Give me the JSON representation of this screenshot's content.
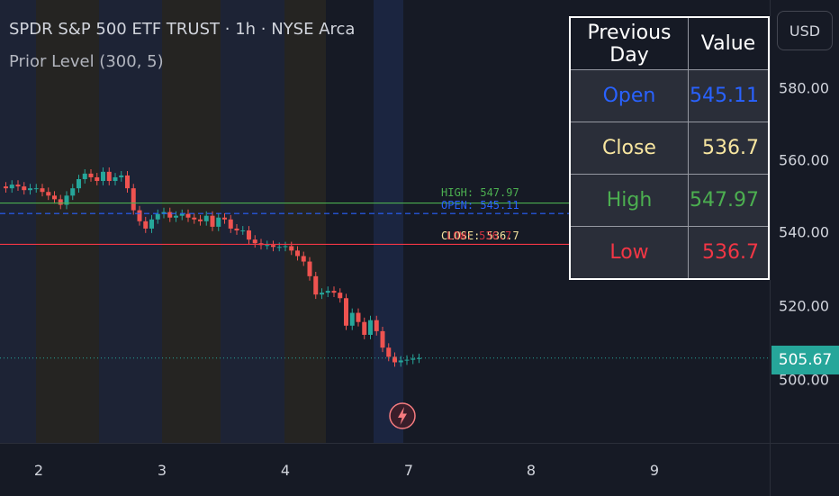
{
  "header": {
    "title": "SPDR S&P 500 ETF TRUST · 1h · NYSE Arca",
    "indicator": "Prior Level (300, 5)"
  },
  "price_axis": {
    "currency": "USD",
    "ticks": [
      "580.00",
      "560.00",
      "540.00",
      "520.00",
      "500.00"
    ],
    "last_price": "505.67"
  },
  "time_axis": {
    "ticks": [
      "2",
      "3",
      "4",
      "7",
      "8",
      "9"
    ]
  },
  "levels": {
    "high_label": "HIGH: 547.97",
    "open_label": "OPEN: 545.11",
    "close_label": "CLOSE: 536.7",
    "low_label": "LOW: 536.7"
  },
  "table": {
    "headers": [
      "Previous Day",
      "Value"
    ],
    "rows": [
      {
        "name": "Open",
        "value": "545.11",
        "color": "#2962ff"
      },
      {
        "name": "Close",
        "value": "536.7",
        "color": "#f8e6a0"
      },
      {
        "name": "High",
        "value": "547.97",
        "color": "#4caf50"
      },
      {
        "name": "Low",
        "value": "536.7",
        "color": "#f23645"
      }
    ]
  },
  "colors": {
    "up": "#26a69a",
    "down": "#ef5350",
    "high_line": "#4caf50",
    "open_line": "#2962ff",
    "low_line": "#f23645",
    "last_line": "#26a69a"
  },
  "icons": {
    "replay": "lightning-icon"
  }
}
